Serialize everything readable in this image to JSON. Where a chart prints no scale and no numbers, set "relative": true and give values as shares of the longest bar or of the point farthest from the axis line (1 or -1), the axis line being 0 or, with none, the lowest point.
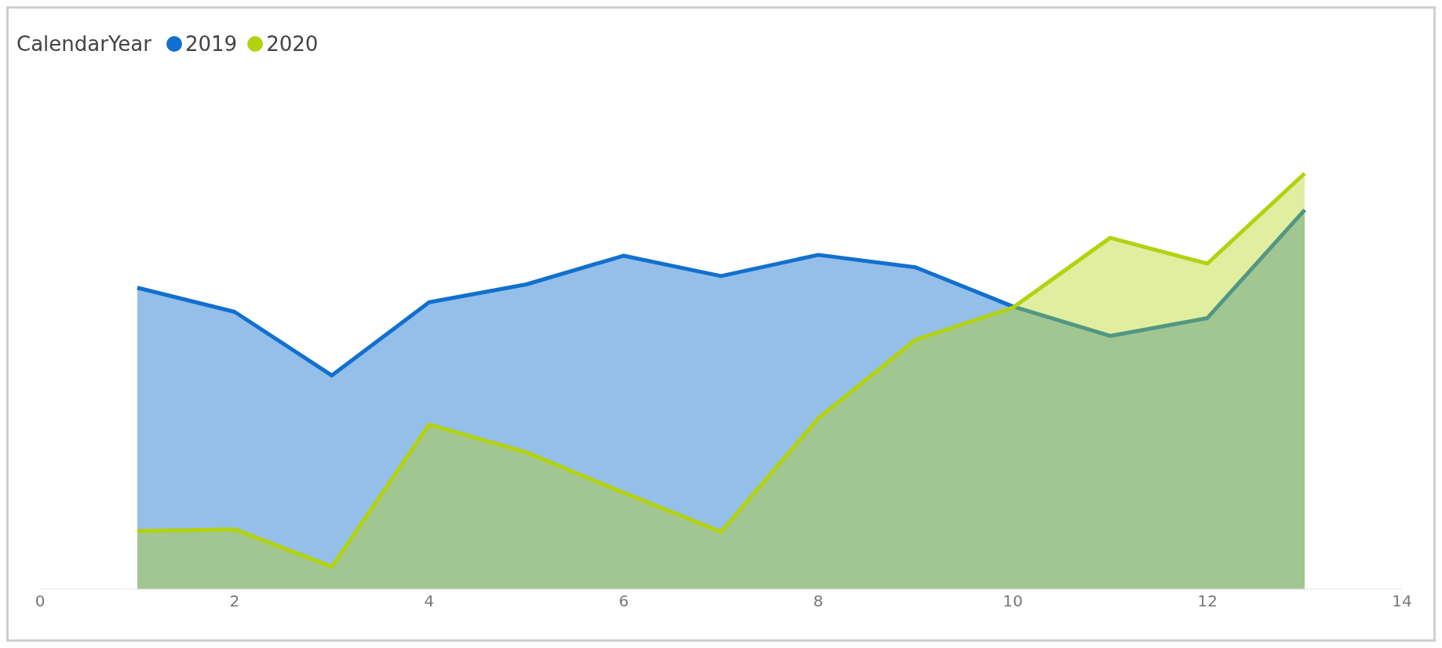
{
  "chart_data": {
    "type": "area",
    "relative": true,
    "legend_title": "CalendarYear",
    "legend": "top left",
    "grid": false,
    "marker": "none",
    "x": [
      1,
      2,
      3,
      4,
      5,
      6,
      7,
      8,
      9,
      10,
      11,
      12,
      13
    ],
    "xlim": [
      0,
      14
    ],
    "xticks": [
      0,
      2,
      4,
      6,
      8,
      10,
      12,
      14
    ],
    "series": [
      {
        "name": "2019",
        "color": "#1170cf",
        "values": [
          0.725,
          0.667,
          0.514,
          0.69,
          0.733,
          0.802,
          0.753,
          0.804,
          0.774,
          0.68,
          0.609,
          0.652,
          0.912
        ]
      },
      {
        "name": "2020",
        "color": "#b3d20f",
        "values": [
          0.14,
          0.144,
          0.054,
          0.396,
          0.329,
          0.232,
          0.138,
          0.411,
          0.6,
          0.677,
          0.845,
          0.783,
          1
        ]
      }
    ]
  }
}
